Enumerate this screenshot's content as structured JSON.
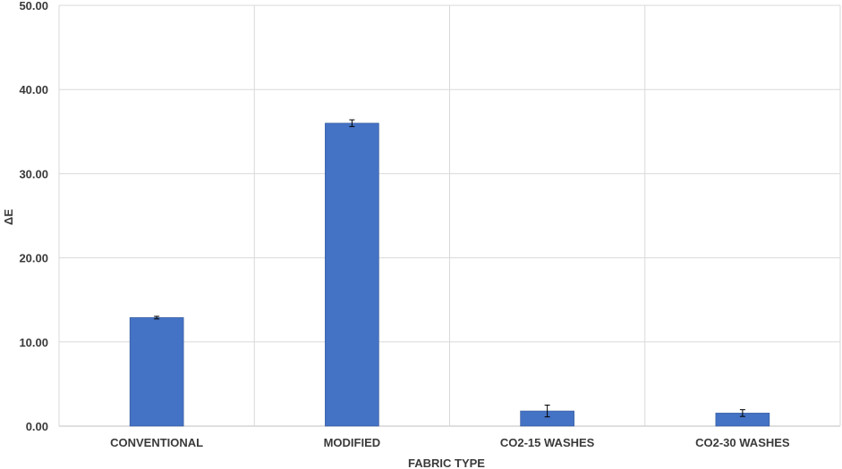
{
  "chart_data": {
    "type": "bar",
    "title": "",
    "xlabel": "FABRIC TYPE",
    "ylabel": "ΔE",
    "categories": [
      "CONVENTIONAL",
      "MODIFIED",
      "CO2-15 WASHES",
      "CO2-30 WASHES"
    ],
    "values": [
      12.9,
      36.0,
      1.8,
      1.55
    ],
    "errors": [
      0.15,
      0.4,
      0.7,
      0.4
    ],
    "ylim": [
      0,
      50
    ],
    "yticks": [
      "0.00",
      "10.00",
      "20.00",
      "30.00",
      "40.00",
      "50.00"
    ],
    "grid": true,
    "legend": "none",
    "colors": {
      "bar": "#4472c4",
      "bar_edge": "#2f5597",
      "grid": "#d9d9d9",
      "text": "#3a3a3a"
    }
  }
}
